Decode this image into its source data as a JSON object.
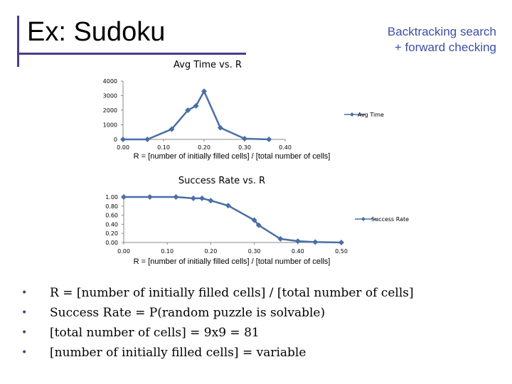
{
  "slide": {
    "title": "Ex: Sudoku",
    "subtitle_line1": "Backtracking search",
    "subtitle_line2": "+ forward checking",
    "accent_color": "#4b3c8c",
    "subtitle_color": "#3d4ea6",
    "bullet_glyph": "•",
    "bullets": [
      "R = [number of initially filled cells] / [total number of cells]",
      "Success Rate = P(random puzzle is solvable)",
      "[total number of cells] = 9x9 = 81",
      "[number of initially filled cells] = variable"
    ]
  },
  "chart_data": [
    {
      "type": "line",
      "title": "Avg Time vs. R",
      "xlabel": "R = [number of initially filled cells] / [total number of cells]",
      "ylabel": "",
      "xlim": [
        0,
        0.4
      ],
      "ylim": [
        0,
        4000
      ],
      "xticks": [
        "0.00",
        "0.10",
        "0.20",
        "0.30",
        "0.40"
      ],
      "yticks": [
        "0",
        "1000",
        "2000",
        "3000",
        "4000"
      ],
      "legend_position": "right",
      "series": [
        {
          "name": "Avg Time",
          "color": "#4a6fa5",
          "x": [
            0.0,
            0.06,
            0.12,
            0.16,
            0.18,
            0.2,
            0.24,
            0.3,
            0.36
          ],
          "y": [
            0,
            0,
            700,
            2000,
            2300,
            3300,
            800,
            50,
            0
          ]
        }
      ]
    },
    {
      "type": "line",
      "title": "Success Rate vs. R",
      "xlabel": "R = [number of initially filled cells] / [total number of cells]",
      "ylabel": "",
      "xlim": [
        0,
        0.5
      ],
      "ylim": [
        0,
        1
      ],
      "xticks": [
        "0.00",
        "0.10",
        "0.20",
        "0.30",
        "0.40",
        "0.50"
      ],
      "yticks": [
        "0.00",
        "0.20",
        "0.40",
        "0.60",
        "0.80",
        "1.00"
      ],
      "legend_position": "right",
      "series": [
        {
          "name": "Success Rate",
          "color": "#4a6fa5",
          "x": [
            0.0,
            0.06,
            0.12,
            0.16,
            0.18,
            0.2,
            0.24,
            0.3,
            0.31,
            0.36,
            0.4,
            0.44,
            0.5
          ],
          "y": [
            1.0,
            1.0,
            1.0,
            0.97,
            0.97,
            0.92,
            0.81,
            0.49,
            0.38,
            0.08,
            0.03,
            0.01,
            0.0
          ]
        }
      ]
    }
  ]
}
